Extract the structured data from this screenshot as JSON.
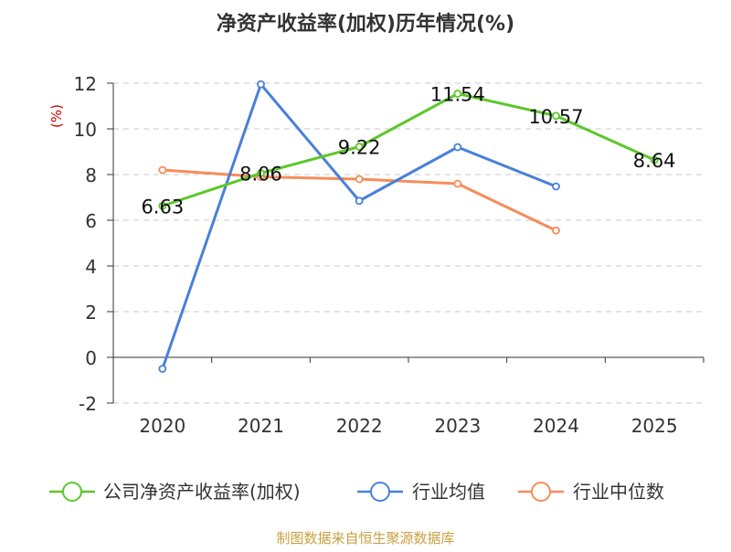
{
  "chart_data": {
    "type": "line",
    "title": "净资产收益率(加权)历年情况(%)",
    "ylabel": "(%)",
    "xlabel": "",
    "categories": [
      "2020",
      "2021",
      "2022",
      "2023",
      "2024",
      "2025"
    ],
    "ylim": [
      -2,
      12
    ],
    "yticks": [
      -2,
      0,
      2,
      4,
      6,
      8,
      10,
      12
    ],
    "grid": true,
    "legend_position": "bottom",
    "series": [
      {
        "name": "公司净资产收益率(加权)",
        "color": "#5cc72a",
        "values": [
          6.63,
          8.06,
          9.22,
          11.54,
          10.57,
          8.64
        ],
        "labels": [
          "6.63",
          "8.06",
          "9.22",
          "11.54",
          "10.57",
          "8.64"
        ],
        "show_labels": true
      },
      {
        "name": "行业均值",
        "color": "#4a7fdb",
        "values": [
          -0.5,
          11.95,
          6.85,
          9.2,
          7.48,
          null
        ],
        "show_labels": false
      },
      {
        "name": "行业中位数",
        "color": "#f78c5a",
        "values": [
          8.2,
          7.9,
          7.8,
          7.6,
          5.55,
          null
        ],
        "show_labels": false
      }
    ]
  },
  "colors": {
    "ylabel": "#cc0000",
    "source": "#c8a040",
    "grid": "#c8c8c8",
    "axis": "#333333"
  },
  "footer": {
    "source": "制图数据来自恒生聚源数据库"
  }
}
